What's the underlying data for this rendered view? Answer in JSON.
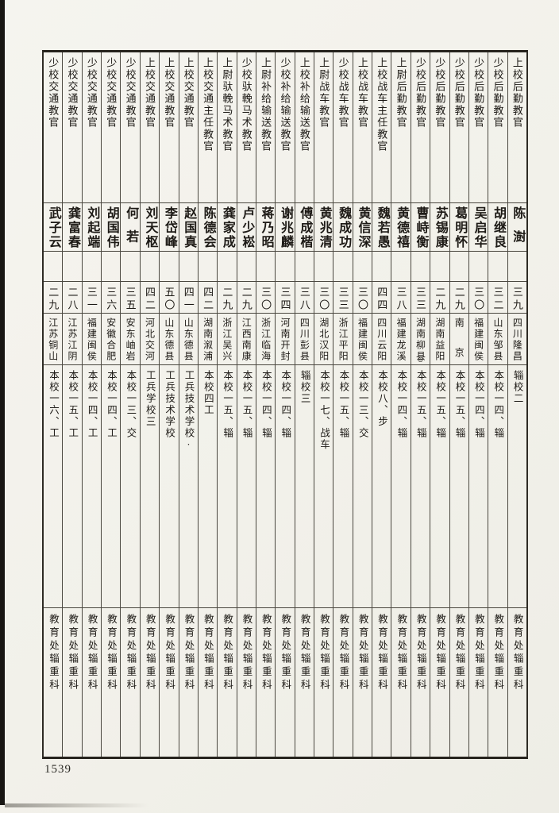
{
  "page": {
    "number": "1539",
    "paper_color": "#f3f1ea",
    "line_color": "#4b4840",
    "reading_note": "columns read right to left, text vertical"
  },
  "table": {
    "department_row_text": "教育处辎重科",
    "columns": [
      {
        "title": "上校后勤教官",
        "name": "陈澍",
        "age": "三九",
        "origin": "四川隆昌",
        "education": "辎校二",
        "department": "教育处辎重科"
      },
      {
        "title": "少校后勤教官",
        "name": "胡继良",
        "age": "三二",
        "origin": "山东邹县",
        "education": "本校一四、辎",
        "department": "教育处辎重科"
      },
      {
        "title": "少校后勤教官",
        "name": "吴启华",
        "age": "三〇",
        "origin": "福建闽侯",
        "education": "本校一四、辎",
        "department": "教育处辎重科"
      },
      {
        "title": "少校后勤教官",
        "name": "葛明怀",
        "age": "二九",
        "origin": "南京",
        "education": "本校一五、辎",
        "department": "教育处辎重科"
      },
      {
        "title": "少校后勤教官",
        "name": "苏锡康",
        "age": "二九",
        "origin": "湖南益阳",
        "education": "本校一五、辎",
        "department": "教育处辎重科"
      },
      {
        "title": "少校后勤教官",
        "name": "曹峙衡",
        "age": "三三",
        "origin": "湖南柳县",
        "origin_note": "◎",
        "education": "本校一五、辎",
        "department": "教育处辎重科"
      },
      {
        "title": "上尉后勤教官",
        "name": "黄德禧",
        "age": "三八",
        "origin": "福建龙溪",
        "education": "本校一四、辎",
        "department": "教育处辎重科"
      },
      {
        "title": "上校战车主任教官",
        "name": "魏若愚",
        "age": "四四",
        "origin": "四川云阳",
        "education": "本校八、步",
        "department": "教育处辎重科"
      },
      {
        "title": "上校战车教官",
        "name": "黄信深",
        "age": "三〇",
        "origin": "福建闽侯",
        "education": "本校一三、交",
        "department": "教育处辎重科"
      },
      {
        "title": "少校战车教官",
        "name": "魏成功",
        "age": "三三",
        "origin": "浙江平阳",
        "education": "本校一五、辎",
        "department": "教育处辎重科"
      },
      {
        "title": "上尉战车教官",
        "name": "黄兆清",
        "age": "三〇",
        "origin": "湖北汉阳",
        "education": "本校一七、战车",
        "department": "教育处辎重科"
      },
      {
        "title": "上校补给输送教官",
        "name": "傅成楷",
        "age": "三八",
        "origin": "四川彭县",
        "education": "辎校三",
        "department": "教育处辎重科"
      },
      {
        "title": "少校补给输送教官",
        "name": "谢兆麟",
        "age": "三四",
        "origin": "河南开封",
        "education": "本校一四、辎",
        "department": "教育处辎重科"
      },
      {
        "title": "上尉补给输送教官",
        "name": "蒋乃昭",
        "age": "三〇",
        "origin": "浙江临海",
        "education": "本校一四、辎",
        "department": "教育处辎重科"
      },
      {
        "title": "少校驮輓马术教官",
        "name": "卢少崧",
        "age": "二九",
        "origin": "江西南康",
        "education": "本校一五、辎",
        "department": "教育处辎重科"
      },
      {
        "title": "上尉驮輓马术教官",
        "name": "龚家成",
        "age": "二九",
        "origin": "浙江吴兴",
        "education": "本校一五、辎",
        "department": "教育处辎重科"
      },
      {
        "title": "上校交通主任教官",
        "name": "陈德会",
        "age": "四二",
        "origin": "湖南溆浦",
        "education": "本校四工",
        "department": "教育处辎重科"
      },
      {
        "title": "上校交通教官",
        "name": "赵国真",
        "age": "四一",
        "origin": "山东德县",
        "education": "工兵技术学校·",
        "department": "教育处辎重科"
      },
      {
        "title": "上校交通教官",
        "name": "李岱峰",
        "age": "五〇",
        "origin": "山东德县",
        "education": "工兵技术学校",
        "department": "教育处辎重科"
      },
      {
        "title": "上校交通教官",
        "name": "刘天枢",
        "age": "四二",
        "origin": "河北交河",
        "education": "工兵学校三",
        "department": "教育处辎重科"
      },
      {
        "title": "少校交通教官",
        "name": "何若",
        "age": "三五",
        "origin": "安东岫岩",
        "education": "本校一三、交",
        "department": "教育处辎重科"
      },
      {
        "title": "少校交通教官",
        "name": "胡国伟",
        "age": "三六",
        "origin": "安徽合肥",
        "education": "本校一四、工",
        "department": "教育处辎重科"
      },
      {
        "title": "少校交通教官",
        "name": "刘起端",
        "age": "三一",
        "origin": "福建闽侯",
        "education": "本校一四、工",
        "department": "教育处辎重科"
      },
      {
        "title": "少校交通教官",
        "name": "龚富春",
        "age": "二八",
        "origin": "江苏江阴",
        "education": "本校一五、工",
        "department": "教育处辎重科"
      },
      {
        "title": "少校交通教官",
        "name": "武子云",
        "age": "二九",
        "origin": "江苏铜山",
        "education": "本校一六、工",
        "department": "教育处辎重科"
      }
    ]
  }
}
